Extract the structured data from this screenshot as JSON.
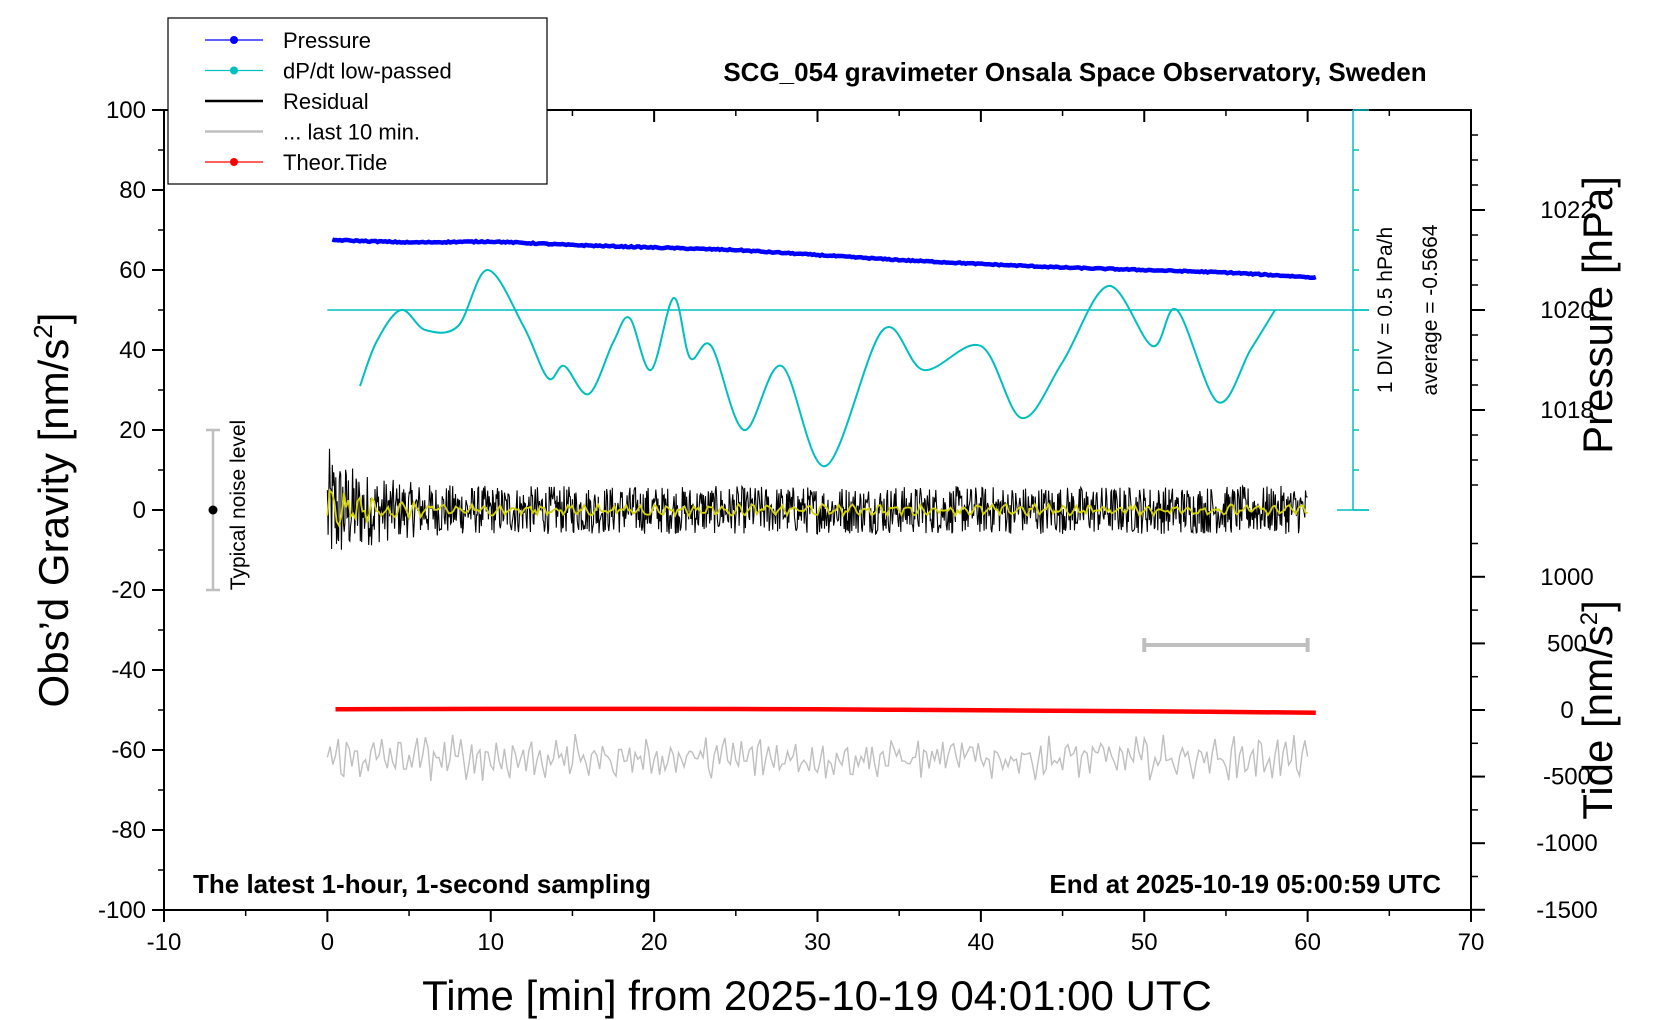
{
  "chart_data": {
    "type": "line",
    "title": "SCG_054 gravimeter Onsala Space Observatory, Sweden",
    "subtitle_left": "The latest 1-hour, 1-second sampling",
    "subtitle_right": "End at 2025-10-19 05:00:59 UTC",
    "xlabel": "Time [min] from 2025-10-19 04:01:00 UTC",
    "ylabel": "Obs’d Gravity [nm/s",
    "ylabel_sup": "2",
    "ylabel_end": "]",
    "ylabel_right_top": "Pressure [hPa]",
    "ylabel_right_bottom": "Tide [nm/s",
    "ylabel_right_bottom_sup": "2",
    "ylabel_right_bottom_end": "]",
    "xlim": [
      -10,
      70
    ],
    "ylim": [
      -100,
      100
    ],
    "x_ticks": [
      "-10",
      "0",
      "10",
      "20",
      "30",
      "40",
      "50",
      "60",
      "70"
    ],
    "y_ticks": [
      "-100",
      "-80",
      "-60",
      "-40",
      "-20",
      "0",
      "20",
      "40",
      "60",
      "80",
      "100"
    ],
    "pressure_axis": {
      "ticks": [
        "1018",
        "1020",
        "1022"
      ],
      "values": [
        1018,
        1020,
        1022
      ],
      "ref": 1020
    },
    "tide_axis": {
      "ticks": [
        "-1500",
        "-1000",
        "-500",
        "0",
        "500",
        "1000"
      ],
      "values": [
        -1500,
        -1000,
        -500,
        0,
        500,
        1000
      ]
    },
    "dpdt_scale": {
      "label": "1 DIV = 0.5 hPa/h",
      "average_label": "average = -0.5664"
    },
    "noise_label": "Typical noise level",
    "legend": [
      {
        "label": "Pressure",
        "color": "#0000ff",
        "marker": true
      },
      {
        "label": "dP/dt low-passed",
        "color": "#00bfbf",
        "marker": true
      },
      {
        "label": "Residual",
        "color": "#000000",
        "marker": false
      },
      {
        "label": "... last 10 min.",
        "color": "#bfbfbf",
        "marker": false
      },
      {
        "label": "Theor.Tide",
        "color": "#ff0000",
        "marker": true
      }
    ],
    "series": [
      {
        "name": "Pressure",
        "unit": "hPa",
        "color": "#0000ff",
        "x": [
          0.3,
          5,
          10,
          15,
          20,
          25,
          30,
          35,
          40,
          45,
          50,
          55,
          60.5
        ],
        "y": [
          1021.4,
          1021.35,
          1021.37,
          1021.3,
          1021.25,
          1021.2,
          1021.1,
          1021.0,
          1020.92,
          1020.85,
          1020.8,
          1020.75,
          1020.65
        ]
      },
      {
        "name": "dP/dt low-passed",
        "unit": "nm/s2",
        "color": "#00bfbf",
        "x": [
          2,
          3,
          4.5,
          6,
          8,
          9.8,
          12,
          13.5,
          14.5,
          16,
          17.5,
          18.5,
          19.8,
          21.2,
          22.2,
          23.5,
          25.5,
          27.8,
          30.5,
          34,
          36.5,
          40,
          42.5,
          45,
          47.8,
          50.5,
          52,
          54.5,
          56.5,
          58
        ],
        "y": [
          31,
          42,
          50,
          45,
          46,
          60,
          46,
          33,
          36,
          29,
          42,
          48,
          35,
          53,
          38,
          41,
          20,
          36,
          11,
          45,
          35,
          41,
          23,
          37,
          56,
          41,
          50,
          27,
          40,
          50
        ]
      },
      {
        "name": "Residual",
        "unit": "nm/s2",
        "color": "#000000",
        "x_range": [
          0,
          60
        ],
        "amplitude_early": 16,
        "amplitude_late": 6,
        "center": 0
      },
      {
        "name": "Smoothed residual",
        "unit": "nm/s2",
        "color": "#d4d400",
        "x_range": [
          0,
          60
        ],
        "center": 0
      },
      {
        "name": "... last 10 min.",
        "unit": "nm/s2",
        "color": "#bfbfbf",
        "x_range": [
          0,
          60
        ],
        "offset": -62,
        "span_min": [
          50,
          60
        ]
      },
      {
        "name": "Theor.Tide",
        "unit": "nm/s2",
        "color": "#ff0000",
        "x": [
          0.5,
          10,
          20,
          30,
          40,
          50,
          60.5
        ],
        "y_tide": [
          5,
          8,
          8,
          5,
          -2,
          -10,
          -20
        ]
      }
    ],
    "noise_bar": {
      "x": -7,
      "y_center": 0,
      "y_low": -20,
      "y_high": 20
    }
  }
}
